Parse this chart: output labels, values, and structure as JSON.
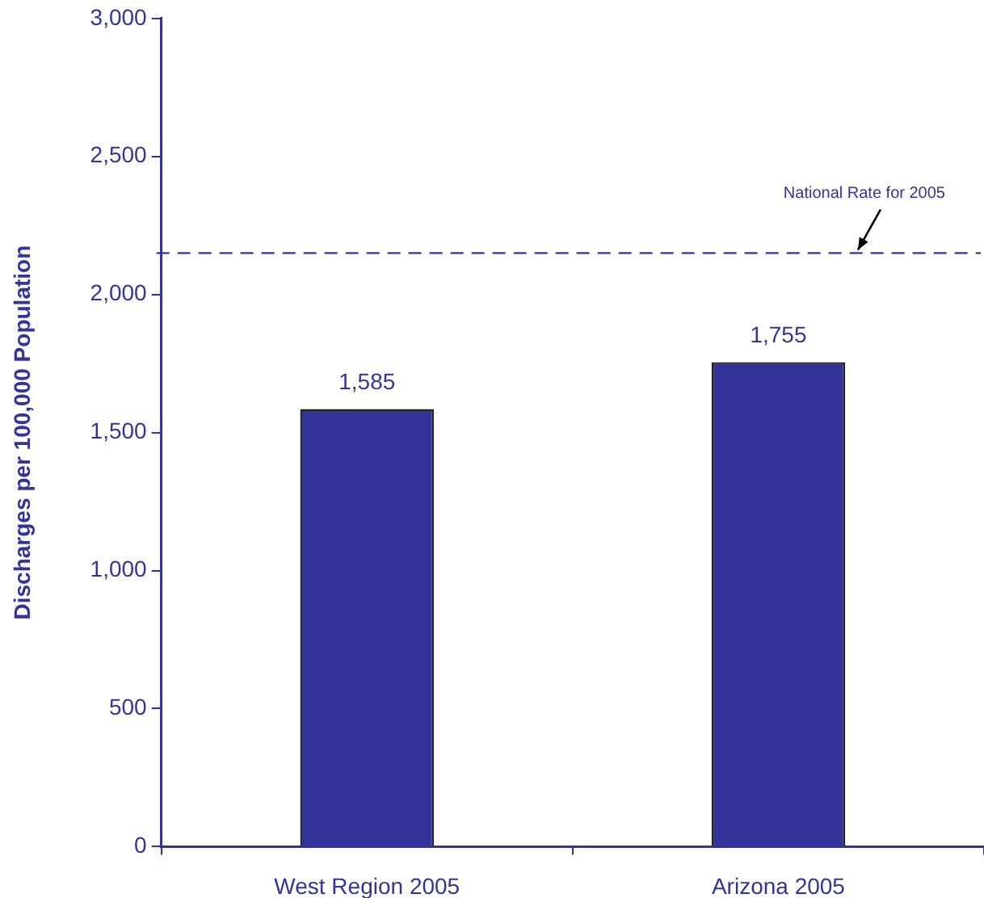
{
  "chart_data": {
    "type": "bar",
    "categories": [
      "West Region 2005",
      "Arizona 2005"
    ],
    "values": [
      1585,
      1755
    ],
    "color": "#333399",
    "value_labels": [
      "1,585",
      "1,755"
    ],
    "ylabel": "Discharges per 100,000 Population",
    "ylim": [
      0,
      3000
    ],
    "yticks": [
      0,
      500,
      {
        "value": 1000,
        "label": "1,000"
      },
      {
        "value": 1500,
        "label": "1,500"
      },
      {
        "value": 2000,
        "label": "2,000"
      },
      {
        "value": 2500,
        "label": "2,500"
      },
      {
        "value": 3000,
        "label": "3,000"
      }
    ],
    "ref_lines": [
      {
        "axis": "y",
        "value": 2150,
        "label": "National Rate for 2005",
        "color": "#333399",
        "line_style": "dashed"
      }
    ]
  }
}
